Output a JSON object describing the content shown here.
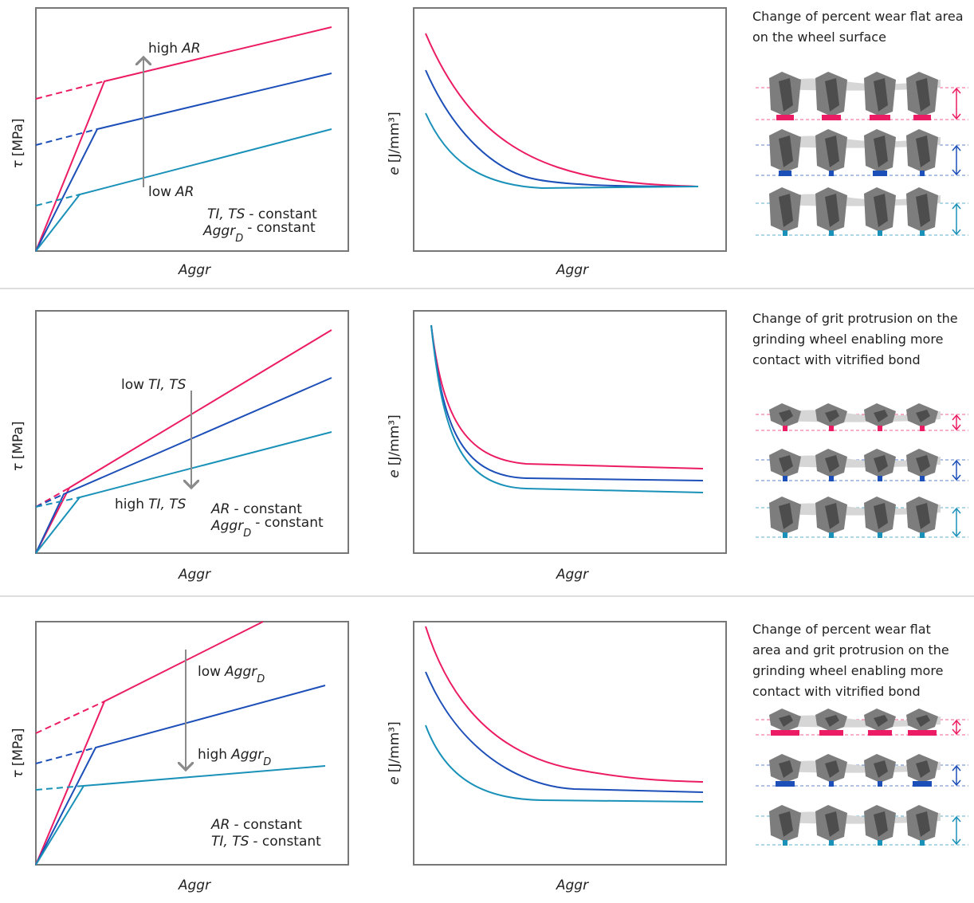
{
  "rows": [
    {
      "tau_chart": {
        "y_label": {
          "var": "τ",
          "unit": "[MPa]"
        },
        "x_label": "Aggr",
        "annotations": [
          {
            "text": "high",
            "var": "AR"
          },
          {
            "text": "low",
            "var": "AR"
          },
          {
            "var": "TI, TS",
            "text": "- constant"
          },
          {
            "var": "Aggr",
            "sub": "D",
            "text": "- constant"
          }
        ]
      },
      "energy_chart": {
        "y_label": {
          "var": "e",
          "unit": "[J/mm³]"
        },
        "x_label": "Aggr"
      },
      "description": [
        "Change of percent wear flat area",
        "on the wheel surface"
      ]
    },
    {
      "tau_chart": {
        "y_label": {
          "var": "τ",
          "unit": "[MPa]"
        },
        "x_label": "Aggr",
        "annotations": [
          {
            "text": "low",
            "var": "TI, TS"
          },
          {
            "text": "high",
            "var": "TI, TS"
          },
          {
            "var": "AR",
            "text": "- constant"
          },
          {
            "var": "Aggr",
            "sub": "D",
            "text": "- constant"
          }
        ]
      },
      "energy_chart": {
        "y_label": {
          "var": "e",
          "unit": "[J/mm³]"
        },
        "x_label": "Aggr"
      },
      "description": [
        "Change of grit protrusion on the",
        "grinding wheel enabling more",
        "contact with vitrified bond"
      ]
    },
    {
      "tau_chart": {
        "y_label": {
          "var": "τ",
          "unit": "[MPa]"
        },
        "x_label": "Aggr",
        "annotations": [
          {
            "text": "low",
            "var": "Aggr",
            "sub": "D"
          },
          {
            "text": "high",
            "var": "Aggr",
            "sub": "D"
          },
          {
            "var": "AR",
            "text": "- constant"
          },
          {
            "var": "TI, TS",
            "text": "- constant"
          }
        ]
      },
      "energy_chart": {
        "y_label": {
          "var": "e",
          "unit": "[J/mm³]"
        },
        "x_label": "Aggr"
      },
      "description": [
        "Change of percent wear flat",
        "area and grit protrusion on the",
        "grinding wheel enabling more",
        "contact with vitrified bond"
      ]
    }
  ]
}
